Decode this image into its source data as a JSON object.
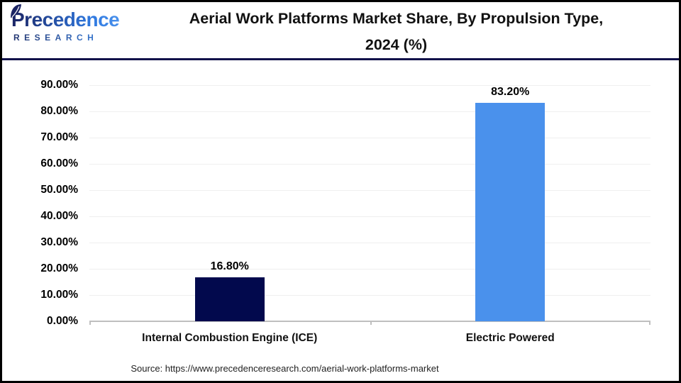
{
  "logo": {
    "brand": "Precedence",
    "subtitle": "RESEARCH"
  },
  "header": {
    "title_line1": "Aerial Work Platforms Market Share, By Propulsion Type,",
    "title_line2": "2024 (%)"
  },
  "chart_data": {
    "type": "bar",
    "title": "Aerial Work Platforms Market Share, By Propulsion Type, 2024 (%)",
    "categories": [
      "Internal Combustion Engine (ICE)",
      "Electric Powered"
    ],
    "values": [
      16.8,
      83.2
    ],
    "value_labels": [
      "16.80%",
      "83.20%"
    ],
    "bar_colors": [
      "#02094D",
      "#4A91EC"
    ],
    "ylim": [
      0,
      90
    ],
    "ytick_step": 10,
    "ytick_labels": [
      "0.00%",
      "10.00%",
      "20.00%",
      "30.00%",
      "40.00%",
      "50.00%",
      "60.00%",
      "70.00%",
      "80.00%",
      "90.00%"
    ],
    "xlabel": "",
    "ylabel": "",
    "grid": "horizontal",
    "legend_position": "none"
  },
  "footer": {
    "source": "Source: https://www.precedenceresearch.com/aerial-work-platforms-market"
  },
  "colors": {
    "bar_ice": "#02094D",
    "bar_electric": "#4A91EC",
    "gridline": "#EFEFEF",
    "axis_line": "#BFBFBF",
    "header_divider": "#12124A",
    "logo_dark": "#1B2464",
    "logo_blue": "#2F79E0"
  }
}
